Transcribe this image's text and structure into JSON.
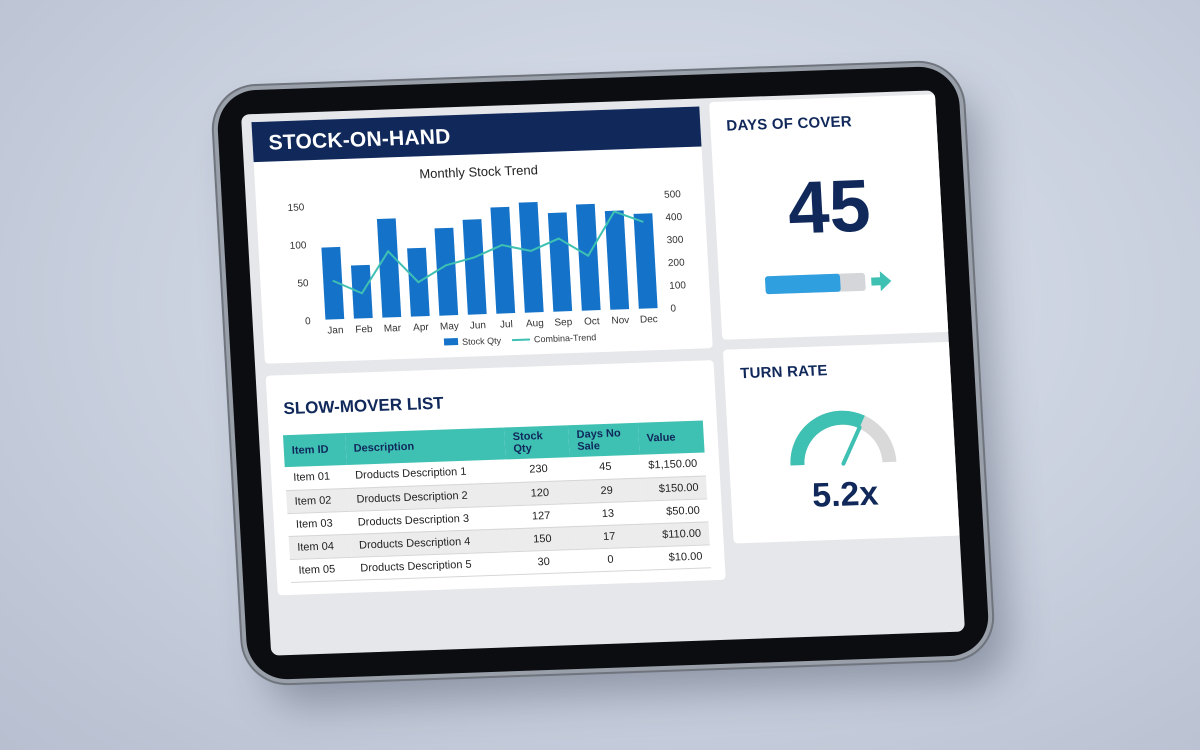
{
  "stock_on_hand": {
    "title": "STOCK-ON-HAND",
    "chart_title": "Monthly Stock Trend"
  },
  "chart_data": {
    "type": "bar",
    "title": "Monthly Stock Trend",
    "categories": [
      "Jan",
      "Feb",
      "Mar",
      "Apr",
      "May",
      "Jun",
      "Jul",
      "Aug",
      "Sep",
      "Oct",
      "Nov",
      "Dec"
    ],
    "series": [
      {
        "name": "Stock Qty",
        "type": "bar",
        "axis": "left",
        "color": "#1473c9",
        "values": [
          95,
          70,
          130,
          90,
          115,
          125,
          140,
          145,
          130,
          140,
          130,
          125
        ]
      },
      {
        "name": "Combina-Trend",
        "type": "line",
        "axis": "right",
        "color": "#3ec0b3",
        "values": [
          170,
          110,
          290,
          150,
          220,
          250,
          300,
          270,
          320,
          240,
          430,
          380
        ]
      }
    ],
    "ylim_left": [
      0,
      150
    ],
    "yticks_left": [
      "0",
      "50",
      "100",
      "150"
    ],
    "ylim_right": [
      0,
      500
    ],
    "yticks_right": [
      "0",
      "100",
      "200",
      "300",
      "400",
      "500"
    ],
    "legend": "bottom",
    "grid": false
  },
  "days_of_cover": {
    "title": "DAYS OF COVER",
    "value": "45",
    "bar_fill_fraction": 0.75,
    "bar_color": "#2f9fe0",
    "arrow_color": "#3ec0b3"
  },
  "slow_mover": {
    "title": "SLOW-MOVER LIST",
    "columns": [
      "Item ID",
      "Description",
      "Stock Qty",
      "Days No Sale",
      "Value"
    ],
    "rows": [
      {
        "id": "Item 01",
        "desc": "Droducts Description 1",
        "qty": "230",
        "days": "45",
        "value": "$1,150.00"
      },
      {
        "id": "Item 02",
        "desc": "Droducts Description 2",
        "qty": "120",
        "days": "29",
        "value": "$150.00"
      },
      {
        "id": "Item 03",
        "desc": "Droducts Description 3",
        "qty": "127",
        "days": "13",
        "value": "$50.00"
      },
      {
        "id": "Item 04",
        "desc": "Droducts Description 4",
        "qty": "150",
        "days": "17",
        "value": "$110.00"
      },
      {
        "id": "Item 05",
        "desc": "Droducts Description 5",
        "qty": "30",
        "days": "0",
        "value": "$10.00"
      }
    ]
  },
  "turn_rate": {
    "title": "TURN RATE",
    "value": "5.2x",
    "gauge_fraction": 0.65,
    "gauge_color": "#3ec0b3"
  },
  "colors": {
    "navy": "#10285a",
    "teal": "#3ec0b3",
    "blue": "#1473c9"
  }
}
